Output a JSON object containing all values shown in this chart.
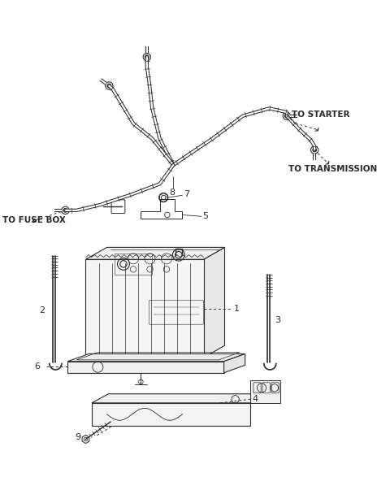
{
  "bg": "#ffffff",
  "lc": "#2a2a2a",
  "fig_w": 4.8,
  "fig_h": 6.19,
  "dpi": 100,
  "labels": {
    "to_starter": "TO STARTER",
    "to_transmission": "TO TRANSMISSION",
    "to_fuse_box": "TO FUSE BOX",
    "1": "1",
    "2": "2",
    "3": "3",
    "4": "4",
    "5": "5",
    "6": "6",
    "7": "7",
    "8": "8",
    "9": "9"
  }
}
